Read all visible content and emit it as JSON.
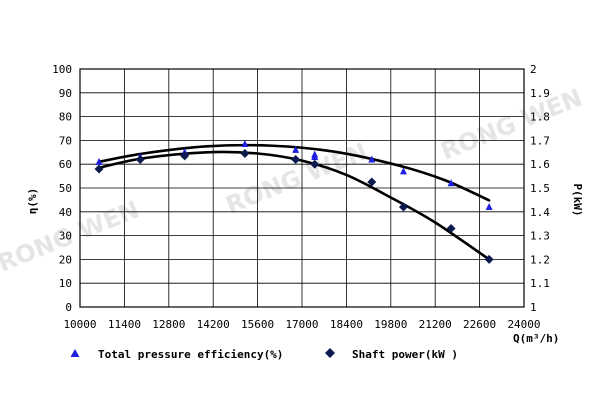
{
  "chart_data": {
    "type": "scatter",
    "xlabel": "Q(m³/h)",
    "ylabel_left": "η(%)",
    "ylabel_right": "P(kW)",
    "xlim": [
      10000,
      24000
    ],
    "ylim_left": [
      0,
      100
    ],
    "ylim_right": [
      1,
      2
    ],
    "x_ticks": [
      "10000",
      "11400",
      "12800",
      "14200",
      "15600",
      "17000",
      "18400",
      "19800",
      "21200",
      "22600",
      "24000"
    ],
    "y_left_ticks": [
      "0",
      "10",
      "20",
      "30",
      "40",
      "50",
      "60",
      "70",
      "80",
      "90",
      "100"
    ],
    "y_right_ticks": [
      "1",
      "1.1",
      "1.2",
      "1.3",
      "1.4",
      "1.5",
      "1.6",
      "1.7",
      "1.8",
      "1.9",
      "2"
    ],
    "grid": true,
    "legend_position": "bottom",
    "watermark": "RONG WEN",
    "series": [
      {
        "name": "Total pressure efficiency(%)",
        "axis": "left",
        "marker": "triangle",
        "color": "#1f1fe0",
        "x": [
          10600,
          11900,
          13300,
          15200,
          16800,
          17400,
          17400,
          19200,
          20200,
          21700,
          22900
        ],
        "y": [
          61,
          63,
          65,
          68.5,
          66,
          64,
          63,
          62,
          57,
          52,
          42
        ],
        "fit_x": [
          10600,
          12000,
          14000,
          16000,
          18000,
          20000,
          21500,
          22900
        ],
        "fit_y": [
          61,
          64.5,
          67.5,
          67.8,
          65.3,
          59.6,
          53.3,
          44.8
        ]
      },
      {
        "name": "Shaft power(kW )",
        "axis": "right",
        "marker": "diamond",
        "color": "#0d1a4d",
        "x": [
          10600,
          11900,
          13300,
          15200,
          16800,
          17400,
          19200,
          20200,
          21700,
          22900
        ],
        "y": [
          1.58,
          1.62,
          1.635,
          1.645,
          1.62,
          1.6,
          1.525,
          1.42,
          1.33,
          1.2
        ],
        "fit_x": [
          10600,
          12000,
          14000,
          15600,
          17000,
          18400,
          19800,
          21200,
          22900
        ],
        "fit_y": [
          1.585,
          1.625,
          1.65,
          1.645,
          1.615,
          1.555,
          1.46,
          1.355,
          1.2
        ]
      }
    ]
  }
}
